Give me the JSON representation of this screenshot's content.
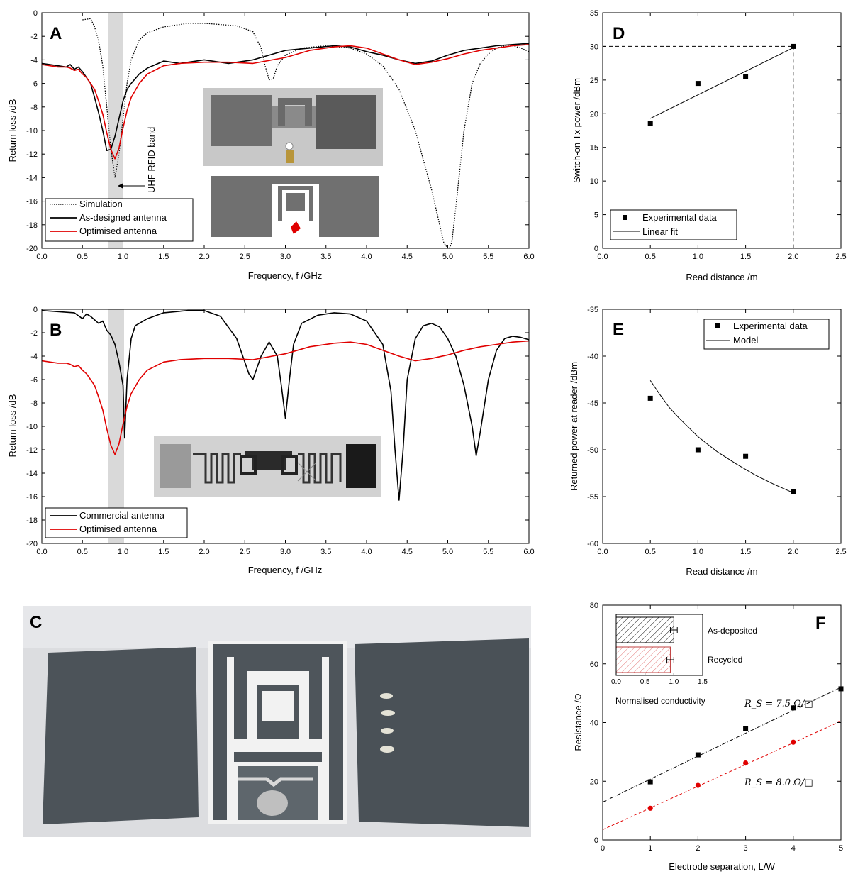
{
  "panels": {
    "A": "A",
    "B": "B",
    "C": "C",
    "D": "D",
    "E": "E",
    "F": "F"
  },
  "photo_c_text": "",
  "chart_data": [
    {
      "id": "A",
      "type": "line",
      "xlabel": "Frequency, f /GHz",
      "ylabel": "Return loss /dB",
      "xlim": [
        0,
        6
      ],
      "ylim": [
        -20,
        0
      ],
      "xticks": [
        "0.0",
        "0.5",
        "1.0",
        "1.5",
        "2.0",
        "2.5",
        "3.0",
        "3.5",
        "4.0",
        "4.5",
        "5.0",
        "5.5",
        "6.0"
      ],
      "yticks": [
        "0",
        "-2",
        "-4",
        "-6",
        "-8",
        "-10",
        "-12",
        "-14",
        "-16",
        "-18",
        "-20"
      ],
      "band": [
        0.81,
        1.0
      ],
      "annotation": "UHF RFID band",
      "legend": "bottom-left",
      "colors": {
        "Simulation": "#000000",
        "As-designed antenna": "#000000",
        "Optimised antenna": "#e00000"
      },
      "series": [
        {
          "name": "Simulation",
          "style": "dotted",
          "x": [
            0.5,
            0.6,
            0.65,
            0.7,
            0.75,
            0.8,
            0.85,
            0.9,
            0.95,
            1.0,
            1.05,
            1.1,
            1.2,
            1.3,
            1.5,
            1.8,
            2.0,
            2.2,
            2.4,
            2.6,
            2.7,
            2.75,
            2.8,
            2.85,
            2.9,
            3.0,
            3.2,
            3.5,
            3.8,
            4.0,
            4.2,
            4.4,
            4.6,
            4.7,
            4.8,
            4.9,
            4.95,
            5.0,
            5.02,
            5.05,
            5.1,
            5.2,
            5.3,
            5.4,
            5.5,
            5.6,
            5.7,
            5.8,
            5.9,
            6.0
          ],
          "y": [
            -0.6,
            -0.5,
            -1.2,
            -2.4,
            -4.5,
            -8,
            -11.5,
            -14,
            -12,
            -9,
            -6,
            -4,
            -2.3,
            -1.7,
            -1.2,
            -0.9,
            -0.9,
            -1.0,
            -1.1,
            -1.6,
            -3.0,
            -4.5,
            -5.7,
            -5.6,
            -4.5,
            -3.6,
            -3.0,
            -2.8,
            -3.0,
            -3.5,
            -4.5,
            -6.5,
            -10,
            -12.5,
            -15,
            -18,
            -19.5,
            -20,
            -20,
            -19.5,
            -16.5,
            -10,
            -6,
            -4.3,
            -3.5,
            -3.0,
            -2.8,
            -2.8,
            -3.0,
            -3.3
          ]
        },
        {
          "name": "As-designed antenna",
          "style": "solid",
          "x": [
            0,
            0.1,
            0.2,
            0.3,
            0.35,
            0.4,
            0.45,
            0.5,
            0.55,
            0.6,
            0.65,
            0.7,
            0.75,
            0.8,
            0.85,
            0.9,
            0.95,
            1.0,
            1.05,
            1.1,
            1.2,
            1.3,
            1.5,
            1.7,
            2.0,
            2.3,
            2.6,
            3.0,
            3.3,
            3.6,
            3.8,
            4.0,
            4.2,
            4.4,
            4.6,
            4.8,
            5.0,
            5.2,
            5.4,
            5.6,
            5.8,
            6.0
          ],
          "y": [
            -4.3,
            -4.4,
            -4.5,
            -4.6,
            -4.4,
            -4.8,
            -4.6,
            -5.0,
            -5.5,
            -6.0,
            -7.2,
            -8.5,
            -10,
            -11.7,
            -11.6,
            -10.5,
            -9.0,
            -7.5,
            -6.5,
            -6.0,
            -5.2,
            -4.7,
            -4.1,
            -4.3,
            -4.0,
            -4.3,
            -4.0,
            -3.2,
            -3.0,
            -2.8,
            -2.9,
            -3.3,
            -3.6,
            -4.0,
            -4.3,
            -4.1,
            -3.6,
            -3.2,
            -3.0,
            -2.8,
            -2.7,
            -2.6
          ]
        },
        {
          "name": "Optimised antenna",
          "style": "solid",
          "x": [
            0,
            0.1,
            0.2,
            0.3,
            0.35,
            0.4,
            0.45,
            0.5,
            0.55,
            0.6,
            0.65,
            0.7,
            0.75,
            0.8,
            0.85,
            0.9,
            0.95,
            1.0,
            1.05,
            1.1,
            1.2,
            1.3,
            1.5,
            1.7,
            2.0,
            2.3,
            2.6,
            3.0,
            3.3,
            3.6,
            3.8,
            4.0,
            4.2,
            4.4,
            4.6,
            4.8,
            5.0,
            5.2,
            5.4,
            5.6,
            5.8,
            6.0
          ],
          "y": [
            -4.4,
            -4.5,
            -4.6,
            -4.6,
            -4.7,
            -4.9,
            -4.8,
            -5.2,
            -5.5,
            -6.0,
            -6.5,
            -7.5,
            -8.6,
            -10.2,
            -11.6,
            -12.4,
            -11.5,
            -9.8,
            -8.3,
            -7.2,
            -6.0,
            -5.2,
            -4.5,
            -4.3,
            -4.2,
            -4.2,
            -4.3,
            -3.8,
            -3.2,
            -2.9,
            -2.8,
            -3.0,
            -3.5,
            -4.0,
            -4.4,
            -4.2,
            -3.9,
            -3.5,
            -3.2,
            -3.0,
            -2.8,
            -2.7
          ]
        }
      ]
    },
    {
      "id": "B",
      "type": "line",
      "xlabel": "Frequency, f /GHz",
      "ylabel": "Return loss /dB",
      "xlim": [
        0,
        6
      ],
      "ylim": [
        -20,
        0
      ],
      "xticks": [
        "0.0",
        "0.5",
        "1.0",
        "1.5",
        "2.0",
        "2.5",
        "3.0",
        "3.5",
        "4.0",
        "4.5",
        "5.0",
        "5.5",
        "6.0"
      ],
      "yticks": [
        "0",
        "-2",
        "-4",
        "-6",
        "-8",
        "-10",
        "-12",
        "-14",
        "-16",
        "-18",
        "-20"
      ],
      "band": [
        0.81,
        1.0
      ],
      "legend": "bottom-left",
      "colors": {
        "Commercial antenna": "#000000",
        "Optimised antenna": "#e00000"
      },
      "series": [
        {
          "name": "Commercial antenna",
          "style": "solid",
          "x": [
            0,
            0.2,
            0.4,
            0.5,
            0.55,
            0.6,
            0.7,
            0.75,
            0.8,
            0.85,
            0.9,
            0.95,
            1.0,
            1.02,
            1.05,
            1.1,
            1.15,
            1.2,
            1.3,
            1.5,
            1.8,
            2.0,
            2.2,
            2.4,
            2.55,
            2.6,
            2.7,
            2.8,
            2.9,
            2.95,
            3.0,
            3.05,
            3.1,
            3.2,
            3.4,
            3.6,
            3.8,
            4.0,
            4.2,
            4.3,
            4.35,
            4.4,
            4.45,
            4.5,
            4.6,
            4.7,
            4.8,
            4.9,
            5.0,
            5.1,
            5.2,
            5.3,
            5.35,
            5.4,
            5.5,
            5.6,
            5.7,
            5.8,
            5.9,
            6.0
          ],
          "y": [
            -0.1,
            -0.2,
            -0.3,
            -0.8,
            -0.4,
            -0.6,
            -1.2,
            -1.0,
            -1.8,
            -2.2,
            -3.0,
            -4.5,
            -6.5,
            -11.0,
            -6,
            -2.5,
            -1.4,
            -1.2,
            -0.8,
            -0.3,
            -0.1,
            -0.1,
            -0.6,
            -2.5,
            -5.5,
            -6.0,
            -4.0,
            -2.8,
            -4.0,
            -6.5,
            -9.3,
            -6.0,
            -3.0,
            -1.2,
            -0.5,
            -0.3,
            -0.4,
            -1.0,
            -3.0,
            -7.0,
            -12.0,
            -16.3,
            -12.0,
            -6.0,
            -2.5,
            -1.4,
            -1.2,
            -1.5,
            -2.5,
            -4.0,
            -6.5,
            -10.0,
            -12.5,
            -10.5,
            -6.0,
            -3.5,
            -2.5,
            -2.3,
            -2.4,
            -2.6
          ]
        },
        {
          "name": "Optimised antenna",
          "style": "solid",
          "x": [
            0,
            0.1,
            0.2,
            0.3,
            0.35,
            0.4,
            0.45,
            0.5,
            0.55,
            0.6,
            0.65,
            0.7,
            0.75,
            0.8,
            0.85,
            0.9,
            0.95,
            1.0,
            1.05,
            1.1,
            1.2,
            1.3,
            1.5,
            1.7,
            2.0,
            2.3,
            2.6,
            3.0,
            3.3,
            3.6,
            3.8,
            4.0,
            4.2,
            4.4,
            4.6,
            4.8,
            5.0,
            5.2,
            5.4,
            5.6,
            5.8,
            6.0
          ],
          "y": [
            -4.4,
            -4.5,
            -4.6,
            -4.6,
            -4.7,
            -4.9,
            -4.8,
            -5.2,
            -5.5,
            -6.0,
            -6.5,
            -7.5,
            -8.6,
            -10.2,
            -11.6,
            -12.4,
            -11.5,
            -9.8,
            -8.3,
            -7.2,
            -6.0,
            -5.2,
            -4.5,
            -4.3,
            -4.2,
            -4.2,
            -4.3,
            -3.8,
            -3.2,
            -2.9,
            -2.8,
            -3.0,
            -3.5,
            -4.0,
            -4.4,
            -4.2,
            -3.9,
            -3.5,
            -3.2,
            -3.0,
            -2.8,
            -2.7
          ]
        }
      ]
    },
    {
      "id": "D",
      "type": "scatter",
      "xlabel": "Read distance /m",
      "ylabel": "Switch-on Tx power /dBm",
      "xlim": [
        0,
        2.5
      ],
      "ylim": [
        0,
        35
      ],
      "xticks": [
        "0.0",
        "0.5",
        "1.0",
        "1.5",
        "2.0",
        "2.5"
      ],
      "yticks": [
        "0",
        "5",
        "10",
        "15",
        "20",
        "25",
        "30",
        "35"
      ],
      "legend": "bottom-left",
      "series": [
        {
          "name": "Experimental data",
          "x": [
            0.5,
            1.0,
            1.5,
            2.0
          ],
          "y": [
            18.5,
            24.5,
            25.5,
            30.0
          ]
        },
        {
          "name": "Linear fit",
          "x": [
            0.5,
            2.0
          ],
          "y": [
            19.3,
            29.8
          ]
        }
      ],
      "reference_point": {
        "x": 2.0,
        "y": 30.0
      }
    },
    {
      "id": "E",
      "type": "scatter",
      "xlabel": "Read distance /m",
      "ylabel": "Returned power at reader /dBm",
      "xlim": [
        0,
        2.5
      ],
      "ylim": [
        -60,
        -35
      ],
      "xticks": [
        "0.0",
        "0.5",
        "1.0",
        "1.5",
        "2.0",
        "2.5"
      ],
      "yticks": [
        "-35",
        "-40",
        "-45",
        "-50",
        "-55",
        "-60"
      ],
      "legend": "top-right",
      "series": [
        {
          "name": "Experimental data",
          "x": [
            0.5,
            1.0,
            1.5,
            2.0
          ],
          "y": [
            -44.5,
            -50.0,
            -50.7,
            -54.5
          ]
        },
        {
          "name": "Model",
          "x": [
            0.5,
            0.6,
            0.7,
            0.8,
            0.9,
            1.0,
            1.2,
            1.4,
            1.6,
            1.8,
            2.0
          ],
          "y": [
            -42.6,
            -44.1,
            -45.5,
            -46.6,
            -47.6,
            -48.6,
            -50.2,
            -51.5,
            -52.7,
            -53.7,
            -54.6
          ]
        }
      ]
    },
    {
      "id": "F",
      "type": "scatter",
      "xlabel": "Electrode separation, L/W",
      "ylabel": "Resistance /Ω",
      "xlim": [
        0,
        5
      ],
      "ylim": [
        0,
        80
      ],
      "xticks": [
        "0",
        "1",
        "2",
        "3",
        "4",
        "5"
      ],
      "yticks": [
        "0",
        "20",
        "40",
        "60",
        "80"
      ],
      "annotations": [
        "R_S = 7.5 Ω/□",
        "R_S = 8.0 Ω/□"
      ],
      "colors": {
        "black": "#000000",
        "red": "#e00000"
      },
      "series": [
        {
          "name": "",
          "x": [
            1,
            2,
            3,
            4,
            5
          ],
          "y": [
            19.8,
            29.0,
            38.0,
            45.0,
            51.5
          ],
          "fit": [
            [
              0,
              12.9
            ],
            [
              5,
              52.0
            ]
          ]
        },
        {
          "name": "",
          "x": [
            1,
            2,
            3,
            4
          ],
          "y": [
            10.8,
            18.6,
            26.2,
            33.3
          ],
          "fit": [
            [
              0,
              3.5
            ],
            [
              5,
              40.5
            ]
          ]
        }
      ],
      "inset": {
        "type": "bar",
        "orientation": "horizontal",
        "xlabel": "Normalised conductivity",
        "xlim": [
          0,
          1.5
        ],
        "xticks": [
          "0.0",
          "0.5",
          "1.0",
          "1.5"
        ],
        "categories": [
          "As-deposited",
          "Recycled"
        ],
        "values": [
          1.0,
          0.94
        ],
        "errors": [
          0.06,
          0.06
        ]
      }
    }
  ]
}
